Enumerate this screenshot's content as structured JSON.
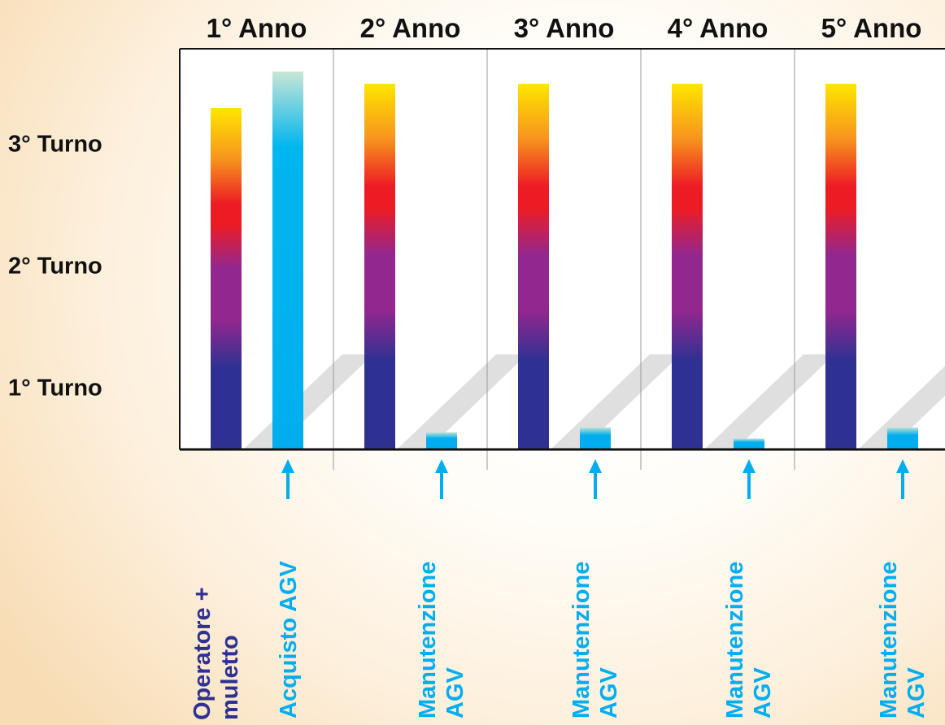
{
  "chart_data": {
    "type": "bar",
    "categories": [
      "1° Anno",
      "2° Anno",
      "3° Anno",
      "4° Anno",
      "5° Anno"
    ],
    "y_ticks": [
      "1° Turno",
      "2° Turno",
      "3° Turno"
    ],
    "ylim": [
      0,
      3
    ],
    "series": [
      {
        "name": "Operatore + muletto",
        "values": [
          2.8,
          3.0,
          3.0,
          3.0,
          3.0
        ]
      },
      {
        "values": [
          3.1,
          0.14,
          0.18,
          0.09,
          0.18
        ]
      }
    ],
    "annotations": [
      "Acquisto AGV",
      "Manutenzione AGV",
      "Manutenzione AGV",
      "Manutenzione AGV",
      "Manutenzione AGV"
    ]
  },
  "colors": {
    "agv": "#00aeef",
    "operator_gradient": [
      "#ffe600",
      "#f7941d",
      "#ed1c24",
      "#92278f",
      "#2e3192"
    ],
    "operator_label": "#2e3192",
    "grid": "#999999"
  }
}
